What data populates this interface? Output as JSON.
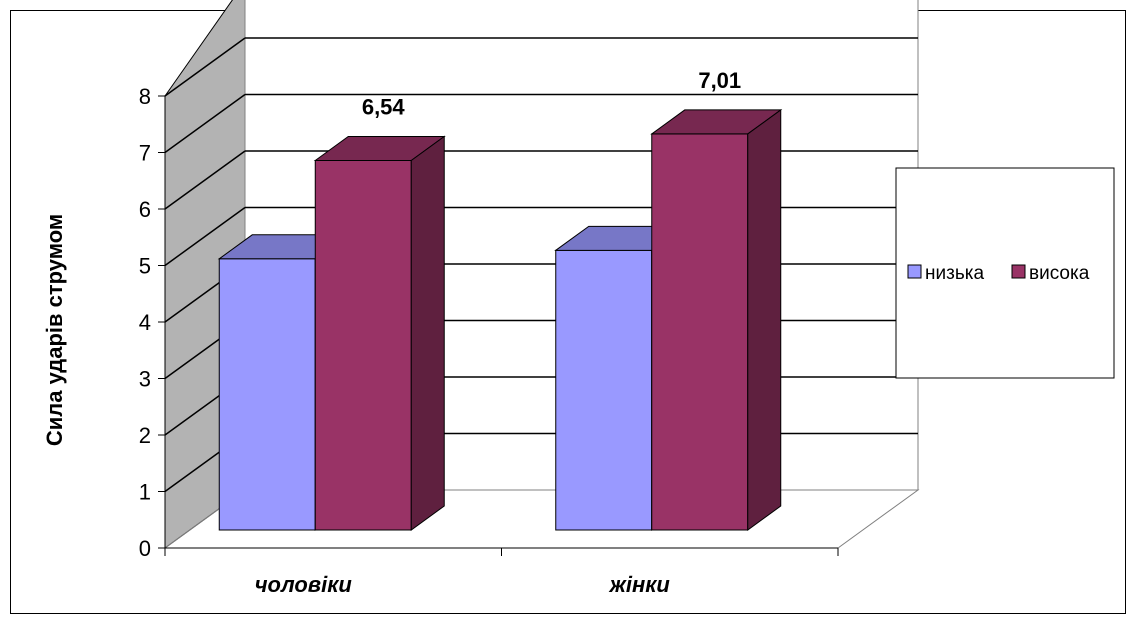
{
  "chart_data": {
    "type": "bar",
    "ylabel": "Сила ударів струмом",
    "categories": [
      "чоловіки",
      "жінки"
    ],
    "ylim": [
      0,
      8
    ],
    "yticks": [
      0,
      1,
      2,
      3,
      4,
      5,
      6,
      7,
      8
    ],
    "grid": true,
    "legend_position": "right",
    "series": [
      {
        "name": "низька",
        "values": [
          4.8,
          4.95
        ],
        "color": "#9999ff"
      },
      {
        "name": "висока",
        "values": [
          6.54,
          7.01
        ],
        "color": "#993366"
      }
    ],
    "data_labels": [
      {
        "series": 1,
        "index": 0,
        "text": "6,54"
      },
      {
        "series": 1,
        "index": 1,
        "text": "7,01"
      }
    ]
  }
}
